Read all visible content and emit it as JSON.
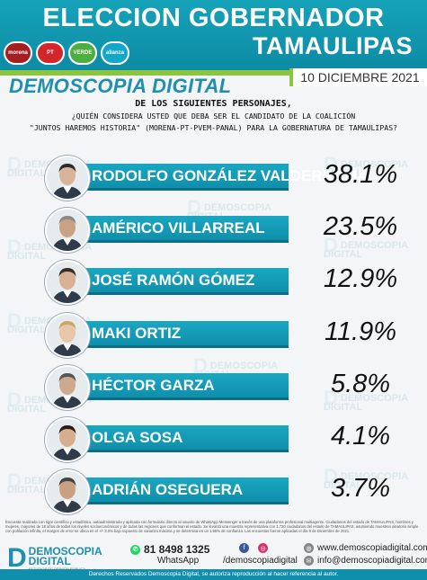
{
  "header": {
    "title_line1": "ELECCION GOBERNADOR",
    "title_line2": "TAMAULIPAS",
    "parties": [
      {
        "label": "morena",
        "color": "#a61e22"
      },
      {
        "label": "PT",
        "color": "#d3262a"
      },
      {
        "label": "VERDE",
        "color": "#4caf3f"
      },
      {
        "label": "alianza",
        "color": "#13a7c8"
      }
    ]
  },
  "brand": "DEMOSCOPIA DIGITAL",
  "date": "10 DICIEMBRE 2021",
  "question": {
    "line1": "DE LOS SIGUIENTES PERSONAJES,",
    "line2": "¿QUIÉN CONSIDERA USTED QUE DEBA SER EL CANDIDATO DE LA COALICIÓN",
    "line3": "\"JUNTOS HAREMOS HISTORIA\" (MORENA-PT-PVEM-PANAL) PARA LA GOBERNATURA DE TAMAULIPAS?"
  },
  "watermark": {
    "line1": "DEMOSCOPIA",
    "line2": "DIGITAL"
  },
  "chart_data": {
    "type": "table",
    "categories": [
      "RODOLFO GONZÁLEZ VALDERRAMA",
      "AMÉRICO VILLARREAL",
      "JOSÉ RAMÓN GÓMEZ",
      "MAKI ORTIZ",
      "HÉCTOR GARZA",
      "OLGA SOSA",
      "ADRIÁN OSEGUERA"
    ],
    "values": [
      38.1,
      23.5,
      12.9,
      11.9,
      5.8,
      4.1,
      3.7
    ],
    "value_labels": [
      "38.1%",
      "23.5%",
      "12.9%",
      "11.9%",
      "5.8%",
      "4.1%",
      "3.7%"
    ]
  },
  "footer": {
    "methodology": "Encuesta realizada con rigor científico y estadístico, autoadministrada y aplicada con formulario directo al usuario de WhatsApp Messenger a través de una plataforma profesional multiagente. Ciudadanos del estado de TAMAULIPAS, hombres y mujeres, mayores de 18 años de todos los niveles socioeconómicos y de todas las regiones que conforman el estado. Se levantó una muestra representativa con 1,720 ciudadanos del estado de TAMAULIPAS, asumiendo muestreo aleatorio simple con población infinita, el margen de error se ubica en el +/- 3.0% bajo supuesto de varianza máxima y se determina en un 1.95% de confianza. Las encuestas fueron aplicadas el día 9 de Diciembre de 2021.",
    "logo_title1": "DEMOSCOPIA",
    "logo_title2": "DIGITAL",
    "logo_sub": "ESTUDIOS DE OPINIÓN PÚBLICA",
    "whatsapp_number": "81 8498 1325",
    "whatsapp_label": "WhatsApp",
    "social_handle": "/demoscopiadigital",
    "website": "www.demoscopiadigital.com",
    "email": "info@demoscopiadigital.com",
    "copyright": "Derechos Reservados Demoscopia Digital, se autoriza reproducción al hacer referencia al autor."
  }
}
